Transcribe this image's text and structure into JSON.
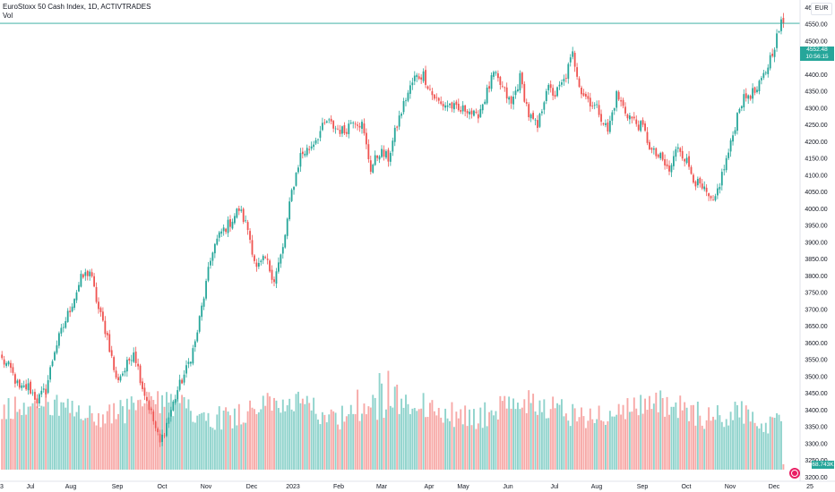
{
  "legend": {
    "symbol_line": "EuroStoxx 50 Cash Index, 1D, ACTIVTRADES",
    "volume_label": "Vol"
  },
  "currency": "EUR",
  "last_price": {
    "value": "4552.48",
    "countdown": "10:56:15"
  },
  "volume_value": "68.743K",
  "colors": {
    "up": "#26a69a",
    "down": "#ef5350",
    "up_vol": "#8fd3cc",
    "down_vol": "#f7a9a7",
    "price_line": "#26a69a"
  },
  "chart_data": {
    "type": "candlestick",
    "title": "EuroStoxx 50 Cash Index, 1D, ACTIVTRADES",
    "ylim": [
      3188,
      4622
    ],
    "y_ticks": [
      3200,
      3250,
      3300,
      3350,
      3400,
      3450,
      3500,
      3550,
      3600,
      3650,
      3700,
      3750,
      3800,
      3850,
      3900,
      3950,
      4000,
      4050,
      4100,
      4150,
      4200,
      4250,
      4300,
      4350,
      4400,
      4450,
      4500,
      4550,
      4600
    ],
    "x_labels": [
      "Jul",
      "Aug",
      "Sep",
      "Oct",
      "Nov",
      "Dec",
      "2023",
      "Feb",
      "Mar",
      "Apr",
      "May",
      "Jun",
      "Jul",
      "Aug",
      "Sep",
      "Oct",
      "Nov",
      "Dec",
      "25"
    ],
    "x_label_edge": "3",
    "last_price": 4552.48,
    "close_anchors": [
      [
        0,
        3550
      ],
      [
        4,
        3520
      ],
      [
        8,
        3460
      ],
      [
        12,
        3470
      ],
      [
        16,
        3430
      ],
      [
        20,
        3460
      ],
      [
        24,
        3580
      ],
      [
        28,
        3650
      ],
      [
        32,
        3720
      ],
      [
        36,
        3790
      ],
      [
        40,
        3815
      ],
      [
        44,
        3700
      ],
      [
        48,
        3620
      ],
      [
        52,
        3490
      ],
      [
        56,
        3520
      ],
      [
        60,
        3580
      ],
      [
        64,
        3470
      ],
      [
        68,
        3390
      ],
      [
        72,
        3300
      ],
      [
        76,
        3380
      ],
      [
        80,
        3460
      ],
      [
        84,
        3520
      ],
      [
        88,
        3600
      ],
      [
        92,
        3740
      ],
      [
        96,
        3880
      ],
      [
        100,
        3930
      ],
      [
        104,
        3960
      ],
      [
        108,
        4000
      ],
      [
        112,
        3940
      ],
      [
        116,
        3820
      ],
      [
        120,
        3850
      ],
      [
        124,
        3790
      ],
      [
        128,
        3880
      ],
      [
        132,
        4050
      ],
      [
        136,
        4160
      ],
      [
        140,
        4180
      ],
      [
        144,
        4220
      ],
      [
        148,
        4260
      ],
      [
        152,
        4240
      ],
      [
        156,
        4230
      ],
      [
        160,
        4270
      ],
      [
        164,
        4250
      ],
      [
        168,
        4120
      ],
      [
        172,
        4170
      ],
      [
        176,
        4150
      ],
      [
        180,
        4250
      ],
      [
        184,
        4330
      ],
      [
        188,
        4390
      ],
      [
        192,
        4400
      ],
      [
        196,
        4340
      ],
      [
        200,
        4310
      ],
      [
        204,
        4310
      ],
      [
        208,
        4290
      ],
      [
        212,
        4300
      ],
      [
        216,
        4270
      ],
      [
        220,
        4330
      ],
      [
        224,
        4400
      ],
      [
        228,
        4360
      ],
      [
        232,
        4310
      ],
      [
        236,
        4390
      ],
      [
        240,
        4280
      ],
      [
        244,
        4240
      ],
      [
        248,
        4360
      ],
      [
        252,
        4340
      ],
      [
        256,
        4380
      ],
      [
        260,
        4460
      ],
      [
        264,
        4350
      ],
      [
        268,
        4320
      ],
      [
        272,
        4290
      ],
      [
        276,
        4230
      ],
      [
        280,
        4340
      ],
      [
        284,
        4290
      ],
      [
        288,
        4260
      ],
      [
        292,
        4240
      ],
      [
        296,
        4170
      ],
      [
        300,
        4150
      ],
      [
        304,
        4110
      ],
      [
        308,
        4190
      ],
      [
        312,
        4140
      ],
      [
        316,
        4080
      ],
      [
        320,
        4050
      ],
      [
        324,
        4010
      ],
      [
        328,
        4100
      ],
      [
        332,
        4190
      ],
      [
        336,
        4310
      ],
      [
        340,
        4340
      ],
      [
        344,
        4350
      ],
      [
        348,
        4410
      ],
      [
        352,
        4490
      ],
      [
        355,
        4552
      ]
    ]
  }
}
